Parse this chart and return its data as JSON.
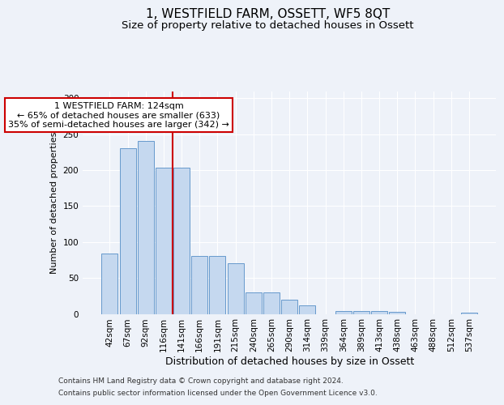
{
  "title": "1, WESTFIELD FARM, OSSETT, WF5 8QT",
  "subtitle": "Size of property relative to detached houses in Ossett",
  "xlabel": "Distribution of detached houses by size in Ossett",
  "ylabel": "Number of detached properties",
  "categories": [
    "42sqm",
    "67sqm",
    "92sqm",
    "116sqm",
    "141sqm",
    "166sqm",
    "191sqm",
    "215sqm",
    "240sqm",
    "265sqm",
    "290sqm",
    "314sqm",
    "339sqm",
    "364sqm",
    "389sqm",
    "413sqm",
    "438sqm",
    "463sqm",
    "488sqm",
    "512sqm",
    "537sqm"
  ],
  "values": [
    84,
    231,
    241,
    204,
    204,
    81,
    81,
    70,
    30,
    30,
    20,
    12,
    0,
    4,
    4,
    4,
    3,
    0,
    0,
    0,
    2
  ],
  "bar_color": "#c5d8ef",
  "bar_edgecolor": "#6699cc",
  "background_color": "#eef2f9",
  "grid_color": "#ffffff",
  "vline_x": 3.5,
  "vline_color": "#cc0000",
  "annotation_line1": "1 WESTFIELD FARM: 124sqm",
  "annotation_line2": "← 65% of detached houses are smaller (633)",
  "annotation_line3": "35% of semi-detached houses are larger (342) →",
  "annotation_box_facecolor": "#ffffff",
  "annotation_box_edgecolor": "#cc0000",
  "footer1": "Contains HM Land Registry data © Crown copyright and database right 2024.",
  "footer2": "Contains public sector information licensed under the Open Government Licence v3.0.",
  "ylim": [
    0,
    310
  ],
  "yticks": [
    0,
    50,
    100,
    150,
    200,
    250,
    300
  ],
  "title_fontsize": 11,
  "subtitle_fontsize": 9.5,
  "xlabel_fontsize": 9,
  "ylabel_fontsize": 8,
  "tick_fontsize": 7.5,
  "annotation_fontsize": 8,
  "footer_fontsize": 6.5
}
